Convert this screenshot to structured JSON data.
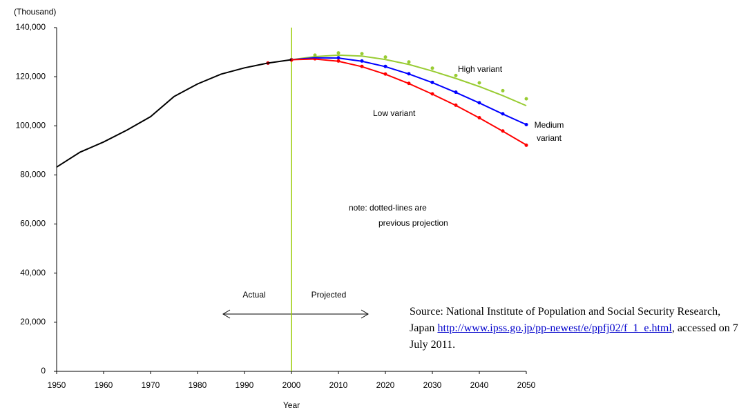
{
  "chart_data": {
    "type": "line",
    "ylabel": "(Thousand)",
    "xlabel": "Year",
    "xlim": [
      1950,
      2050
    ],
    "xticks": [
      1950,
      1960,
      1970,
      1980,
      1990,
      2000,
      2010,
      2020,
      2030,
      2040,
      2050
    ],
    "ylim": [
      0,
      140000
    ],
    "yticks": [
      0,
      {
        "value": 20000,
        "label": "20,000"
      },
      {
        "value": 40000,
        "label": "40,000"
      },
      {
        "value": 60000,
        "label": "60,000"
      },
      {
        "value": 80000,
        "label": "80,000"
      },
      {
        "value": 100000,
        "label": "100,000"
      },
      {
        "value": 120000,
        "label": "120,000"
      },
      {
        "value": 140000,
        "label": "140,000"
      }
    ],
    "divider_x": 2000,
    "divider_color": "#99cc00",
    "series": [
      {
        "name": "Actual",
        "color": "#000000",
        "style": "solid",
        "x": [
          1950,
          1955,
          1960,
          1965,
          1970,
          1975,
          1980,
          1985,
          1990,
          1995,
          2000
        ],
        "values": [
          83200,
          89276,
          93419,
          98275,
          103720,
          111940,
          117060,
          121049,
          123611,
          125570,
          126926
        ]
      },
      {
        "color": "#99cc33",
        "style": "dotted",
        "x": [
          1995,
          2000,
          2005,
          2010,
          2015,
          2020,
          2025,
          2030,
          2035,
          2040,
          2045,
          2050
        ],
        "values": [
          125570,
          127000,
          128800,
          129700,
          129400,
          128000,
          126000,
          123500,
          120500,
          117500,
          114300,
          111000
        ]
      },
      {
        "color": "#0000ff",
        "style": "dotted",
        "x": [
          1995,
          2000,
          2005,
          2010,
          2015,
          2020,
          2025,
          2030,
          2035,
          2040,
          2045,
          2050
        ],
        "values": [
          125570,
          126900,
          127800,
          127700,
          126400,
          124200,
          121200,
          117700,
          113700,
          109400,
          104900,
          100500
        ]
      },
      {
        "color": "#ff0000",
        "style": "dotted",
        "x": [
          1995,
          2000,
          2005,
          2010,
          2015,
          2020,
          2025,
          2030,
          2035,
          2040,
          2045,
          2050
        ],
        "values": [
          125570,
          126800,
          127300,
          126400,
          124200,
          121100,
          117300,
          113000,
          108400,
          103300,
          97900,
          92100
        ]
      },
      {
        "name": "High variant",
        "color": "#99cc33",
        "style": "solid",
        "x": [
          2000,
          2005,
          2010,
          2015,
          2020,
          2025,
          2030,
          2035,
          2040,
          2045,
          2050
        ],
        "values": [
          126926,
          128200,
          128800,
          128400,
          127000,
          125000,
          122300,
          119300,
          116000,
          112300,
          108200
        ]
      },
      {
        "name": "Medium variant",
        "color": "#0000ff",
        "style": "solid",
        "x": [
          2000,
          2005,
          2010,
          2015,
          2020,
          2025,
          2030,
          2035,
          2040,
          2045,
          2050
        ],
        "values": [
          126926,
          127700,
          127600,
          126300,
          124100,
          121100,
          117600,
          113600,
          109300,
          104800,
          100500
        ]
      },
      {
        "name": "Low variant",
        "color": "#ff0000",
        "style": "solid",
        "x": [
          2000,
          2005,
          2010,
          2015,
          2020,
          2025,
          2030,
          2035,
          2040,
          2045,
          2050
        ],
        "values": [
          126926,
          127200,
          126300,
          124100,
          121000,
          117200,
          112900,
          108300,
          103200,
          97800,
          92200
        ]
      }
    ],
    "annotations": {
      "projected": "Projected",
      "note": [
        "note: dotted-lines are",
        "previous projection"
      ]
    },
    "source": {
      "text": "Source: National Institute of Population and Social Security Research, Japan ",
      "link": "http://www.ipss.go.jp/pp-newest/e/ppfj02/f_1_e.html",
      "accessed": ", accessed on 7 July 2011."
    }
  }
}
